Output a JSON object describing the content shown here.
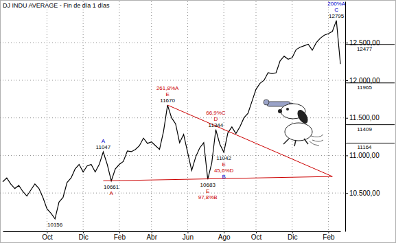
{
  "chart_data": {
    "type": "line",
    "title": "DJ INDU AVERAGE - Fin de día 1 días",
    "categories": [
      null,
      null,
      null,
      null,
      null,
      null,
      null,
      null,
      null,
      null,
      null,
      "Oct",
      null,
      null,
      null,
      null,
      null,
      null,
      null,
      null,
      "Dic",
      null,
      null,
      null,
      null,
      null,
      null,
      null,
      null,
      "Feb",
      null,
      null,
      null,
      null,
      null,
      null,
      null,
      "Abr",
      null,
      null,
      null,
      null,
      null,
      null,
      null,
      null,
      "Jun",
      null,
      null,
      null,
      null,
      null,
      null,
      null,
      null,
      "Ago",
      null,
      null,
      null,
      null,
      null,
      null,
      null,
      "Oct",
      null,
      null,
      null,
      null,
      null,
      null,
      null,
      null,
      "Dic",
      null,
      null,
      null,
      null,
      null,
      null,
      null,
      null,
      "Feb",
      null,
      null,
      null
    ],
    "series": [
      {
        "color": "#000000",
        "values": [
          10650,
          10700,
          10620,
          10560,
          10600,
          10520,
          10460,
          10540,
          10620,
          10560,
          10440,
          10290,
          10230,
          10156,
          10380,
          10440,
          10640,
          10700,
          10820,
          10880,
          10780,
          10860,
          10880,
          10780,
          10880,
          11047,
          10880,
          10661,
          10820,
          10880,
          10920,
          11060,
          11050,
          11080,
          11130,
          11230,
          11160,
          11180,
          11130,
          11080,
          11320,
          11670,
          11500,
          11420,
          11170,
          11280,
          11040,
          10800,
          10980,
          11100,
          11170,
          10683,
          10900,
          11344,
          11150,
          11042,
          11300,
          11380,
          11290,
          11380,
          11500,
          11560,
          11720,
          11880,
          11960,
          12000,
          12100,
          12090,
          12100,
          12260,
          12320,
          12280,
          12300,
          12410,
          12440,
          12460,
          12480,
          12400,
          12500,
          12560,
          12600,
          12620,
          12650,
          12795,
          12216
        ]
      }
    ],
    "ylim": [
      9990,
      13050
    ],
    "yticks": [
      {
        "value": 10500,
        "label": "10.500,00"
      },
      {
        "value": 11000,
        "label": "11.000,00"
      },
      {
        "value": 11500,
        "label": "11.500,00"
      },
      {
        "value": 12000,
        "label": "12.000,00"
      },
      {
        "value": 12500,
        "label": "12.500,00"
      }
    ],
    "grid": true,
    "annotations": [
      {
        "x": 13,
        "y": 10156,
        "texts": [
          {
            "text": "10156",
            "color": "#000000"
          }
        ]
      },
      {
        "x": 25,
        "y": 11047,
        "texts": [
          {
            "text": "A",
            "color": "#0000cc"
          },
          {
            "text": "11047",
            "color": "#000000"
          }
        ]
      },
      {
        "x": 27,
        "y": 10661,
        "texts": [
          {
            "text": "10661",
            "color": "#000000"
          },
          {
            "text": "A",
            "color": "#cc0000"
          }
        ]
      },
      {
        "x": 41,
        "y": 11670,
        "texts": [
          {
            "text": "261,8%A",
            "color": "#cc0000"
          },
          {
            "text": "E",
            "color": "#cc0000"
          },
          {
            "text": "11670",
            "color": "#000000"
          }
        ]
      },
      {
        "x": 51,
        "y": 10683,
        "texts": [
          {
            "text": "10683",
            "color": "#000000"
          },
          {
            "text": "E",
            "color": "#cc0000"
          },
          {
            "text": "97,8%B",
            "color": "#cc0000"
          }
        ]
      },
      {
        "x": 53,
        "y": 11344,
        "texts": [
          {
            "text": "66,9%C",
            "color": "#cc0000"
          },
          {
            "text": "D",
            "color": "#cc0000"
          },
          {
            "text": "11344",
            "color": "#000000"
          }
        ]
      },
      {
        "x": 55,
        "y": 11042,
        "texts": [
          {
            "text": "11042",
            "color": "#000000"
          },
          {
            "text": "E",
            "color": "#cc0000"
          },
          {
            "text": "45,6%D",
            "color": "#cc0000"
          },
          {
            "text": "B",
            "color": "#0000cc"
          }
        ]
      },
      {
        "x": 83,
        "y": 12795,
        "texts": [
          {
            "text": "200%A",
            "color": "#0000cc"
          },
          {
            "text": "C",
            "color": "#0000cc"
          },
          {
            "text": "12795",
            "color": "#000000"
          }
        ]
      }
    ],
    "trend_lines": [
      {
        "x": [
          25,
          82
        ],
        "y": [
          10661,
          10720
        ],
        "color": "#cc0000"
      },
      {
        "x": [
          41,
          82
        ],
        "y": [
          11670,
          10720
        ],
        "color": "#cc0000"
      }
    ],
    "levels": [
      12477,
      11965,
      11409,
      11164
    ]
  }
}
